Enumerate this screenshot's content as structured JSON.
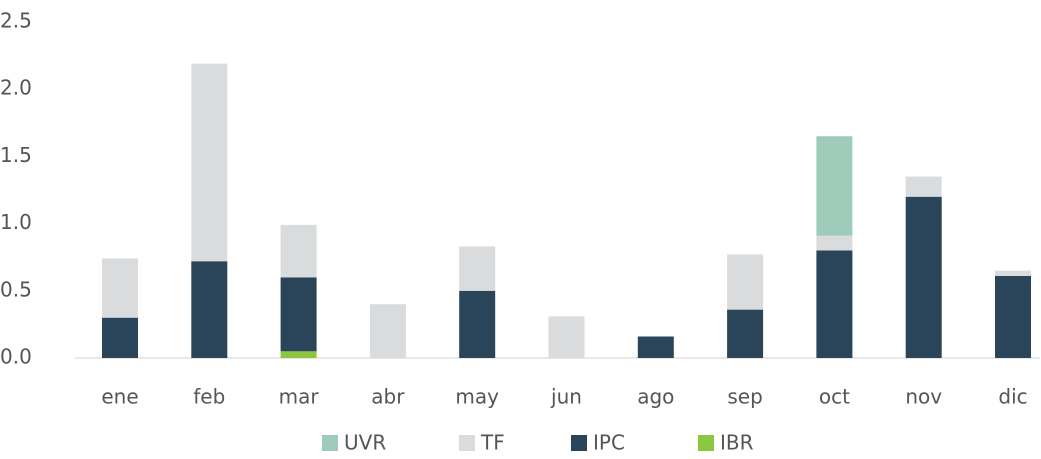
{
  "chart_data": {
    "type": "stacked_bar",
    "categories": [
      "ene",
      "feb",
      "mar",
      "abr",
      "may",
      "jun",
      "ago",
      "sep",
      "oct",
      "nov",
      "dic"
    ],
    "series": [
      {
        "name": "IBR",
        "color": "#8dc63f",
        "values": [
          0,
          0,
          0.05,
          0,
          0,
          0,
          0,
          0,
          0,
          0,
          0
        ]
      },
      {
        "name": "IPC",
        "color": "#2a4459",
        "values": [
          0.3,
          0.72,
          0.55,
          0,
          0.5,
          0,
          0.16,
          0.36,
          0.8,
          1.2,
          0.61
        ]
      },
      {
        "name": "TF",
        "color": "#d9dbdd",
        "values": [
          0.44,
          1.47,
          0.39,
          0.4,
          0.33,
          0.31,
          0,
          0.41,
          0.11,
          0.15,
          0.04
        ]
      },
      {
        "name": "UVR",
        "color": "#9fcbbb",
        "values": [
          0,
          0,
          0,
          0,
          0,
          0,
          0,
          0,
          0.74,
          0,
          0
        ]
      }
    ],
    "ylim": [
      0,
      2.5
    ],
    "yticks": [
      {
        "value": 0,
        "label": "0.0"
      },
      0.5,
      {
        "value": 1,
        "label": "1.0"
      },
      1.5,
      {
        "value": 2,
        "label": "2.0"
      },
      2.5
    ],
    "legend_order": [
      "UVR",
      "TF",
      "IPC",
      "IBR"
    ]
  }
}
